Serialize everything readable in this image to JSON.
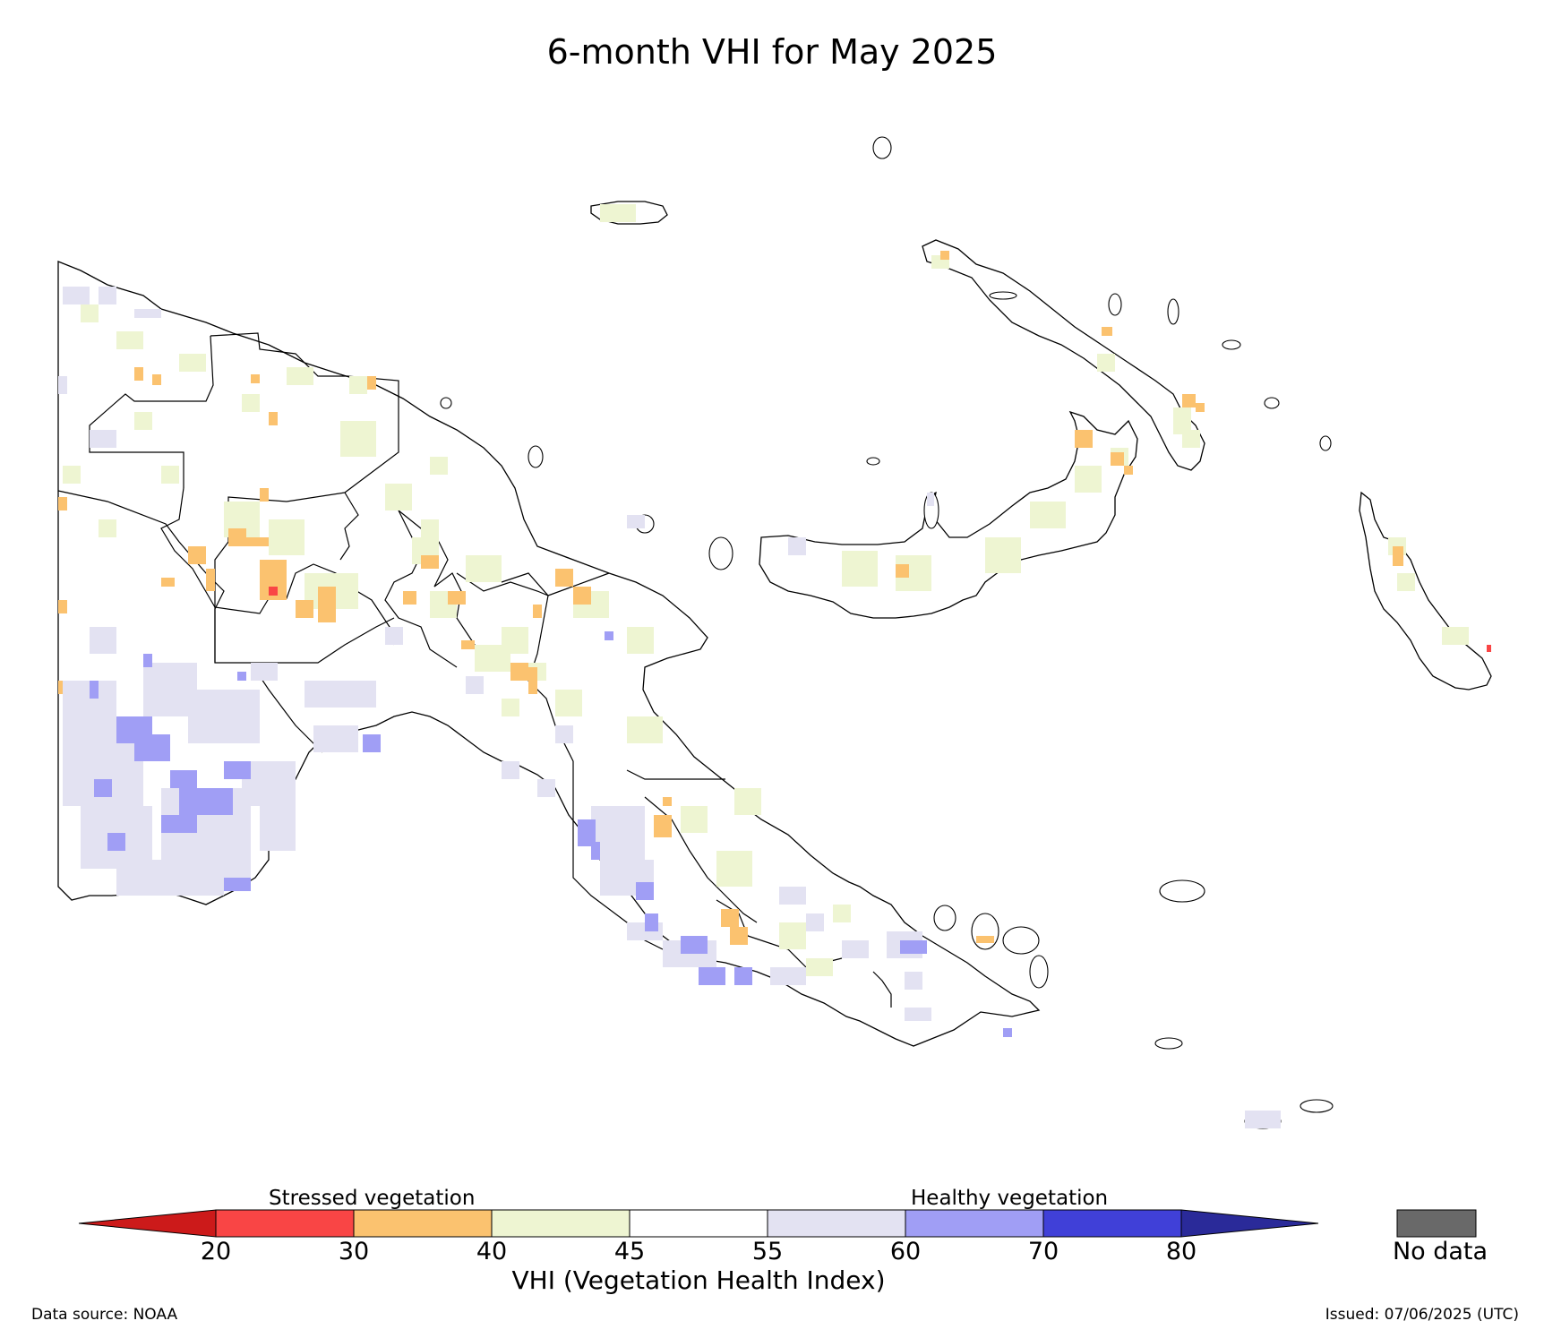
{
  "title": "6-month VHI for May 2025",
  "legend": {
    "stressed_label": "Stressed vegetation",
    "healthy_label": "Healthy vegetation",
    "axis_label": "VHI (Vegetation Health Index)",
    "ticks": [
      "20",
      "30",
      "40",
      "45",
      "55",
      "60",
      "70",
      "80"
    ],
    "bins": [
      {
        "range": "<20",
        "color": "#cc1a1a"
      },
      {
        "range": "20-30",
        "color": "#f94545"
      },
      {
        "range": "30-40",
        "color": "#fbc26f"
      },
      {
        "range": "40-45",
        "color": "#eef5d2"
      },
      {
        "range": "45-55",
        "color": "#ffffff"
      },
      {
        "range": "55-60",
        "color": "#e3e2f2"
      },
      {
        "range": "60-70",
        "color": "#a09ef5"
      },
      {
        "range": "70-80",
        "color": "#4040d8"
      },
      {
        "range": ">80",
        "color": "#2a2a99"
      }
    ],
    "no_data_label": "No data",
    "no_data_color": "#696969"
  },
  "footer": {
    "source": "Data source: NOAA",
    "issued": "Issued: 07/06/2025 (UTC)"
  }
}
